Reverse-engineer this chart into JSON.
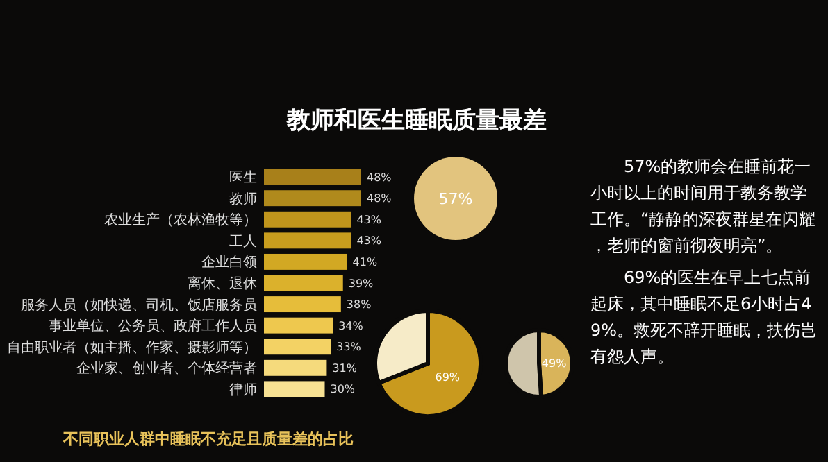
{
  "chart_data": [
    {
      "type": "bar",
      "orientation": "horizontal",
      "title": "教师和医生睡眠质量最差",
      "xlabel": "不同职业人群中睡眠不充足且质量差的占比",
      "categories": [
        "医生",
        "教师",
        "农业生产（农林渔牧等）",
        "工人",
        "企业白领",
        "离休、退休",
        "服务人员（如快递、司机、饭店服务员",
        "事业单位、公务员、政府工作人员",
        "自由职业者（如主播、作家、摄影师等）",
        "企业家、创业者、个体经营者",
        "律师"
      ],
      "values": [
        48,
        48,
        43,
        43,
        41,
        39,
        38,
        34,
        33,
        31,
        30
      ],
      "value_labels": [
        "48%",
        "48%",
        "43%",
        "43%",
        "41%",
        "39%",
        "38%",
        "34%",
        "33%",
        "31%",
        "30%"
      ],
      "colors": [
        "#a8801a",
        "#b08a1c",
        "#c0951c",
        "#c89d1e",
        "#d2a823",
        "#dbb12c",
        "#e6bd3a",
        "#eec84e",
        "#f3d264",
        "#f5da7c",
        "#f7e193"
      ]
    },
    {
      "type": "other",
      "annotations": [
        "57%"
      ]
    },
    {
      "type": "pie",
      "categories": [
        null,
        null
      ],
      "values": [
        69,
        31
      ],
      "value_labels": [
        "69%",
        null
      ],
      "colors": [
        "#c99a1e",
        "#f6ebc8"
      ]
    },
    {
      "type": "pie",
      "categories": [
        null,
        null
      ],
      "values": [
        49,
        51
      ],
      "value_labels": [
        "49%",
        null
      ],
      "colors": [
        "#d9b45a",
        "#cfc5ab"
      ]
    },
    {
      "type": "other",
      "annotations": [
        "57%的教师会在睡前花一小时以上的时间用于教务教学工作。“静静的深夜群星在闪耀，老师的窗前彻夜明亮”。",
        "69%的医生在早上七点前起床，其中睡眠不足6小时占49%。救死不辞开睡眠，扶伤岂有怨人声。"
      ]
    }
  ]
}
